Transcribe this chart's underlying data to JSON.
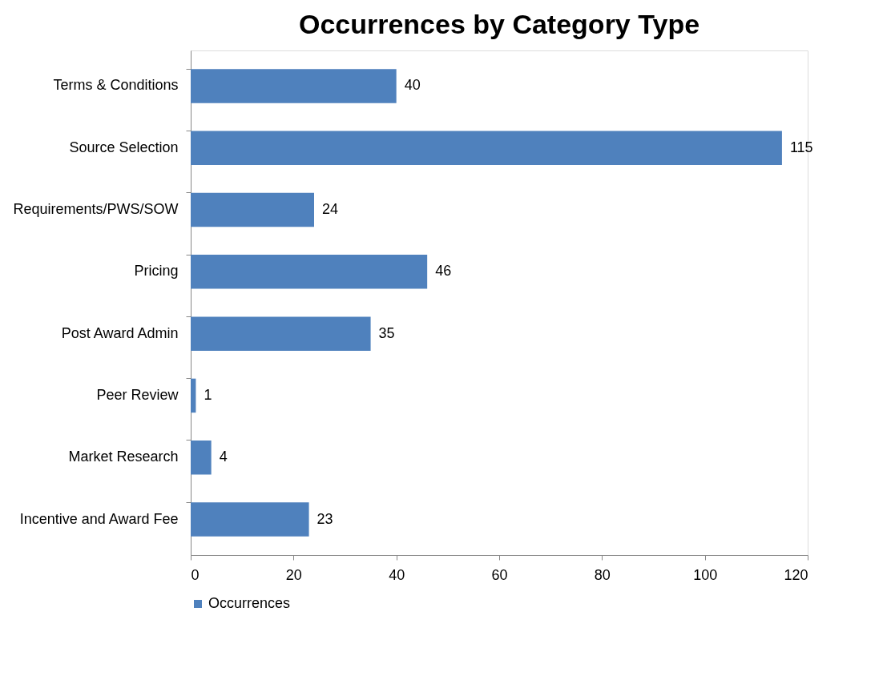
{
  "chart_data": {
    "type": "bar",
    "orientation": "horizontal",
    "title": "Occurrences by Category Type",
    "categories": [
      "Terms & Conditions",
      "Source Selection",
      "Requirements/PWS/SOW",
      "Pricing",
      "Post Award Admin",
      "Peer Review",
      "Market Research",
      "Incentive and Award Fee"
    ],
    "series": [
      {
        "name": "Occurrences",
        "color": "#4f81bd",
        "values": [
          40,
          115,
          24,
          46,
          35,
          1,
          4,
          23
        ]
      }
    ],
    "xlim": [
      0,
      120
    ],
    "xticks": [
      0,
      20,
      40,
      60,
      80,
      100,
      120
    ],
    "grid": false,
    "data_labels": true,
    "legend": "bottom"
  }
}
